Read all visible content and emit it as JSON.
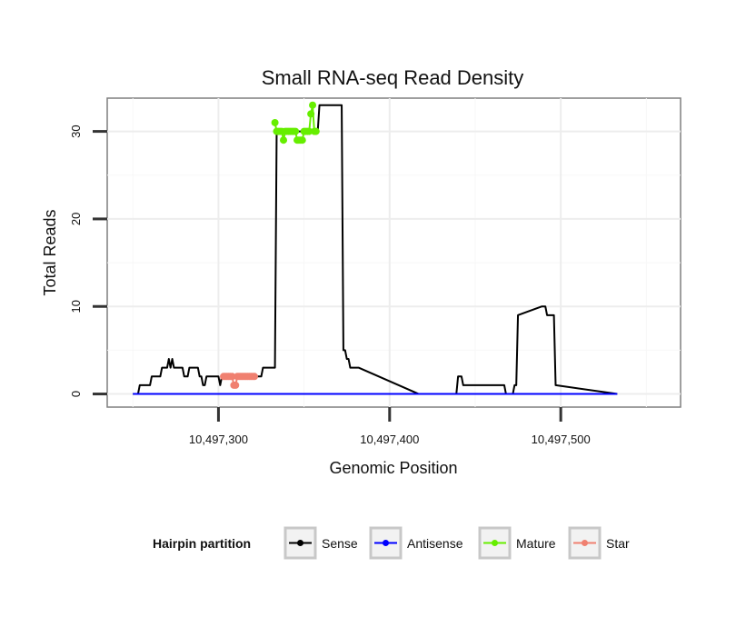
{
  "chart_data": {
    "type": "line",
    "title": "Small RNA-seq Read Density",
    "xlabel": "Genomic Position",
    "ylabel": "Total Reads",
    "xlim": [
      10497235,
      10497570
    ],
    "ylim": [
      -1.5,
      33.8
    ],
    "x_ticks": [
      {
        "value": 10497300,
        "label": "10,497,300"
      },
      {
        "value": 10497400,
        "label": "10,497,400"
      },
      {
        "value": 10497500,
        "label": "10,497,500"
      }
    ],
    "y_ticks": [
      {
        "value": 0,
        "label": "0"
      },
      {
        "value": 10,
        "label": "10"
      },
      {
        "value": 20,
        "label": "20"
      },
      {
        "value": 30,
        "label": "30"
      }
    ],
    "legend": {
      "title": "Hairpin partition",
      "placement": "bottom",
      "entries": [
        {
          "label": "Sense",
          "color": "#000000"
        },
        {
          "label": "Antisense",
          "color": "#0000ff"
        },
        {
          "label": "Mature",
          "color": "#66ee00"
        },
        {
          "label": "Star",
          "color": "#f08070"
        }
      ]
    },
    "series": [
      {
        "name": "Sense",
        "color": "#000000",
        "x": [
          10497250,
          10497253,
          10497254,
          10497260,
          10497261,
          10497266,
          10497267,
          10497268,
          10497269,
          10497270,
          10497271,
          10497272,
          10497273,
          10497274,
          10497275,
          10497279,
          10497280,
          10497282,
          10497283,
          10497288,
          10497289,
          10497290,
          10497291,
          10497292,
          10497293,
          10497294,
          10497295,
          10497300,
          10497301,
          10497302,
          10497303,
          10497306,
          10497307,
          10497309,
          10497310,
          10497325,
          10497326,
          10497333,
          10497334,
          10497335,
          10497336,
          10497349,
          10497350,
          10497354,
          10497355,
          10497358,
          10497359,
          10497372,
          10497373,
          10497374,
          10497375,
          10497376,
          10497377,
          10497381,
          10497382,
          10497417,
          10497418,
          10497439,
          10497440,
          10497442,
          10497443,
          10497467,
          10497468,
          10497472,
          10497473,
          10497474,
          10497475,
          10497489,
          10497490,
          10497491,
          10497492,
          10497496,
          10497497,
          10497533
        ],
        "y": [
          0,
          0,
          1,
          1,
          2,
          2,
          3,
          3,
          3,
          3,
          4,
          3,
          4,
          3,
          3,
          3,
          2,
          2,
          3,
          3,
          2,
          2,
          1,
          1,
          2,
          2,
          2,
          2,
          1,
          2,
          2,
          2,
          2,
          2,
          2,
          2,
          3,
          3,
          30,
          30,
          30,
          30,
          30,
          30,
          30,
          30,
          33,
          33,
          5,
          5,
          4,
          4,
          3,
          3,
          3,
          0,
          0,
          0,
          2,
          2,
          1,
          1,
          0,
          0,
          1,
          1,
          9,
          10,
          10,
          10,
          9,
          9,
          1,
          0
        ]
      },
      {
        "name": "Antisense",
        "color": "#0000ff",
        "x": [
          10497250,
          10497533
        ],
        "y": [
          0,
          0
        ]
      },
      {
        "name": "Mature",
        "color": "#66ee00",
        "x": [
          10497333,
          10497334,
          10497335,
          10497336,
          10497337,
          10497338,
          10497339,
          10497340,
          10497341,
          10497342,
          10497343,
          10497344,
          10497345,
          10497346,
          10497347,
          10497348,
          10497349,
          10497350,
          10497351,
          10497352,
          10497353,
          10497354,
          10497355,
          10497356,
          10497357
        ],
        "y": [
          31,
          30,
          30,
          30,
          30,
          29,
          30,
          30,
          30,
          30,
          30,
          30,
          30,
          29,
          29,
          29,
          29,
          30,
          30,
          30,
          30,
          32,
          33,
          30,
          30
        ]
      },
      {
        "name": "Star",
        "color": "#f08070",
        "x": [
          10497303,
          10497304,
          10497305,
          10497306,
          10497307,
          10497308,
          10497309,
          10497310,
          10497311,
          10497312,
          10497313,
          10497314,
          10497315,
          10497316,
          10497317,
          10497318,
          10497319,
          10497320,
          10497321
        ],
        "y": [
          2,
          2,
          2,
          2,
          2,
          2,
          1,
          1,
          2,
          2,
          2,
          2,
          2,
          2,
          2,
          2,
          2,
          2,
          2
        ]
      }
    ]
  }
}
